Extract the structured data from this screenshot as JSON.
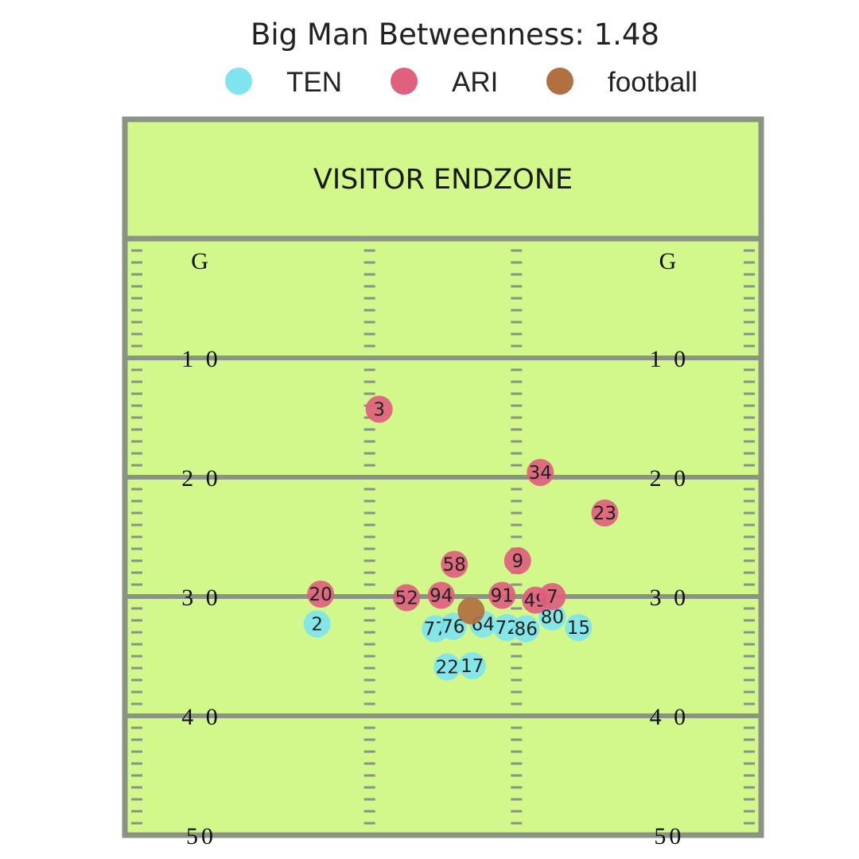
{
  "chart_data": {
    "type": "scatter",
    "title": "Big Man Betweenness: 1.48",
    "endzone_label": "VISITOR ENDZONE",
    "legend": [
      {
        "name": "TEN",
        "color": "#7fe4ee"
      },
      {
        "name": "ARI",
        "color": "#e0607e"
      },
      {
        "name": "football",
        "color": "#b07040"
      }
    ],
    "yard_lines": [
      {
        "yard": 0,
        "label": "G"
      },
      {
        "yard": 10,
        "label": "1 0"
      },
      {
        "yard": 20,
        "label": "2 0"
      },
      {
        "yard": 30,
        "label": "3 0"
      },
      {
        "yard": 40,
        "label": "4 0"
      },
      {
        "yard": 50,
        "label": "50"
      }
    ],
    "x_range": [
      0,
      53.3
    ],
    "y_range": [
      -10,
      50
    ],
    "colors": {
      "field": "#d2f78a",
      "line": "#8a9484"
    },
    "series": [
      {
        "name": "TEN",
        "points": [
          {
            "label": "2",
            "x": 16.1,
            "y": 32.3
          },
          {
            "label": "77",
            "x": 26.0,
            "y": 32.7
          },
          {
            "label": "76",
            "x": 27.5,
            "y": 32.5
          },
          {
            "label": "64",
            "x": 30.0,
            "y": 32.3
          },
          {
            "label": "72",
            "x": 32.0,
            "y": 32.6
          },
          {
            "label": "86",
            "x": 33.6,
            "y": 32.7
          },
          {
            "label": "80",
            "x": 35.8,
            "y": 31.7
          },
          {
            "label": "15",
            "x": 38.0,
            "y": 32.6
          },
          {
            "label": "22",
            "x": 27.0,
            "y": 35.9
          },
          {
            "label": "17",
            "x": 29.1,
            "y": 35.8
          }
        ]
      },
      {
        "name": "ARI",
        "points": [
          {
            "label": "3",
            "x": 21.3,
            "y": 14.3
          },
          {
            "label": "34",
            "x": 34.8,
            "y": 19.6
          },
          {
            "label": "23",
            "x": 40.2,
            "y": 23.0
          },
          {
            "label": "58",
            "x": 27.6,
            "y": 27.3
          },
          {
            "label": "9",
            "x": 32.9,
            "y": 27.0
          },
          {
            "label": "20",
            "x": 16.4,
            "y": 29.8
          },
          {
            "label": "52",
            "x": 23.6,
            "y": 30.1
          },
          {
            "label": "94",
            "x": 26.5,
            "y": 29.9
          },
          {
            "label": "91",
            "x": 31.6,
            "y": 29.9
          },
          {
            "label": "49",
            "x": 34.4,
            "y": 30.3
          },
          {
            "label": "7",
            "x": 35.8,
            "y": 30.0
          }
        ]
      },
      {
        "name": "football",
        "points": [
          {
            "label": "",
            "x": 29.0,
            "y": 31.2
          }
        ]
      }
    ]
  }
}
